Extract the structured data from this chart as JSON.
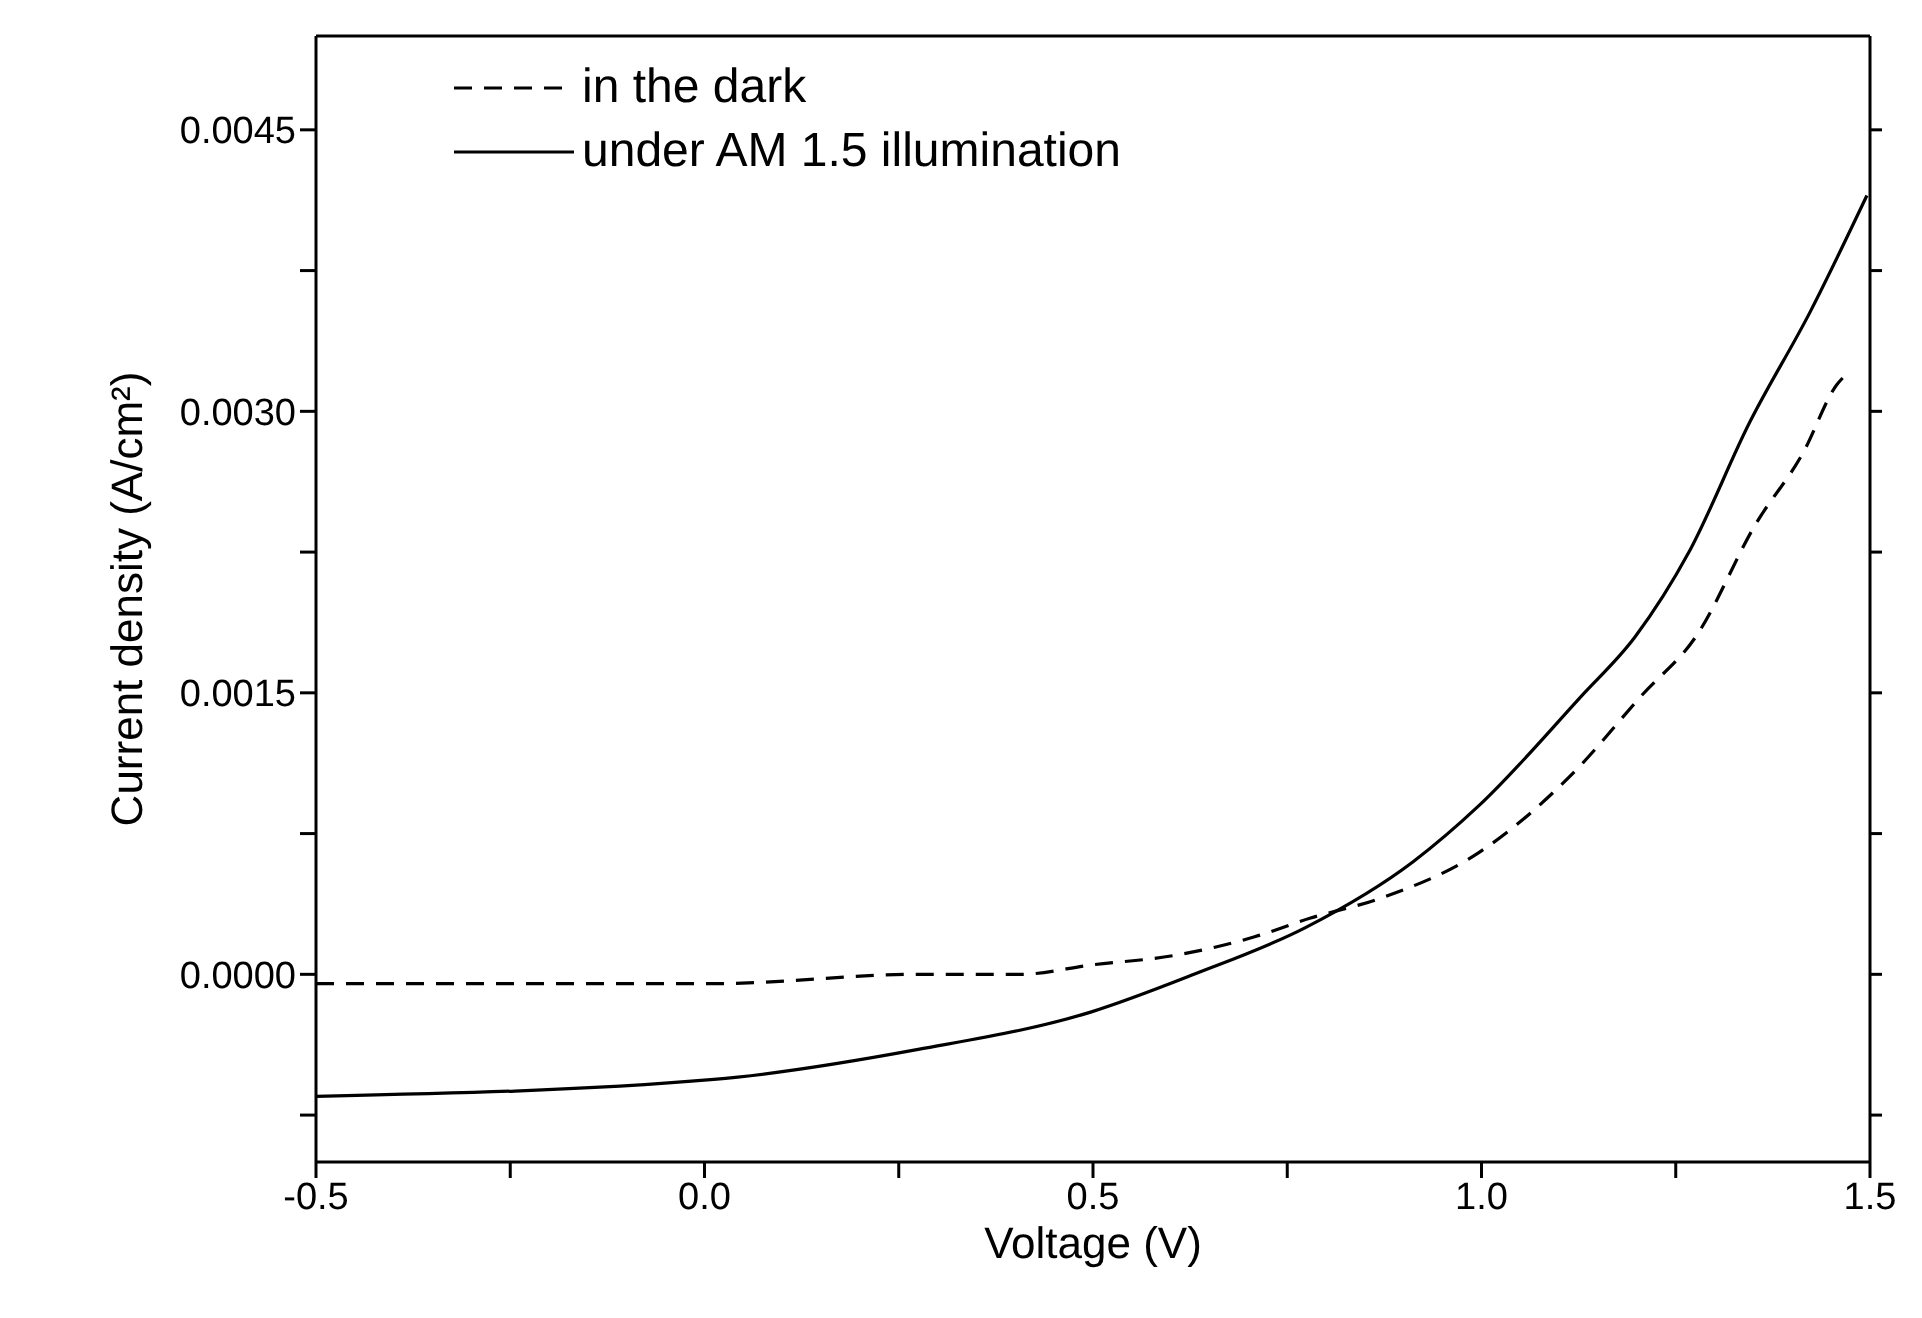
{
  "chart_data": {
    "type": "line",
    "xlabel": "Voltage (V)",
    "ylabel": "Current density (A/cm²)",
    "xlim": [
      -0.5,
      1.5
    ],
    "xticks": [
      {
        "value": -0.5,
        "label": "-0.5"
      },
      {
        "value": -0.25,
        "label": null
      },
      {
        "value": 0,
        "label": "0.0"
      },
      {
        "value": 0.25,
        "label": null
      },
      {
        "value": 0.5,
        "label": "0.5"
      },
      {
        "value": 0.75,
        "label": null
      },
      {
        "value": 1,
        "label": "1.0"
      },
      {
        "value": 1.25,
        "label": null
      },
      {
        "value": 1.5,
        "label": "1.5"
      }
    ],
    "ylim": [
      -0.001,
      0.005
    ],
    "yticks": [
      {
        "value": -0.00075,
        "label": null
      },
      {
        "value": 0,
        "label": "0.0000"
      },
      {
        "value": 0.00075,
        "label": null
      },
      {
        "value": 0.0015,
        "label": "0.0015"
      },
      {
        "value": 0.00225,
        "label": null
      },
      {
        "value": 0.003,
        "label": "0.0030"
      },
      {
        "value": 0.00375,
        "label": null
      },
      {
        "value": 0.0045,
        "label": "0.0045"
      }
    ],
    "grid": false,
    "legend": "top left",
    "marker": "none",
    "series": [
      {
        "name": "in the dark",
        "color": "#000000",
        "line_style": "dashed",
        "x": [
          -0.5,
          0.01,
          0.275,
          0.406,
          0.498,
          0.604,
          0.708,
          0.78,
          0.866,
          0.997,
          1.122,
          1.207,
          1.276,
          1.353,
          1.414,
          1.457,
          1.47
        ],
        "values": [
          -5e-05,
          -5e-05,
          0,
          0,
          5e-05,
          0.0001,
          0.0002,
          0.0003,
          0.0004,
          0.00065,
          0.00109,
          0.00149,
          0.0018,
          0.0024,
          0.00278,
          0.00314,
          0.0032
        ]
      },
      {
        "name": "under AM 1.5 illumination",
        "color": "#000000",
        "line_style": "solid",
        "x": [
          -0.5,
          0.012,
          0.275,
          0.498,
          0.63,
          0.774,
          0.912,
          0.997,
          1.128,
          1.198,
          1.267,
          1.345,
          1.423,
          1.496
        ],
        "values": [
          -0.00065,
          -0.00056,
          -0.0004,
          -0.0002,
          0,
          0.00025,
          0.0006,
          0.0009,
          0.00148,
          0.0018,
          0.00225,
          0.00294,
          0.00353,
          0.00415
        ]
      }
    ]
  }
}
